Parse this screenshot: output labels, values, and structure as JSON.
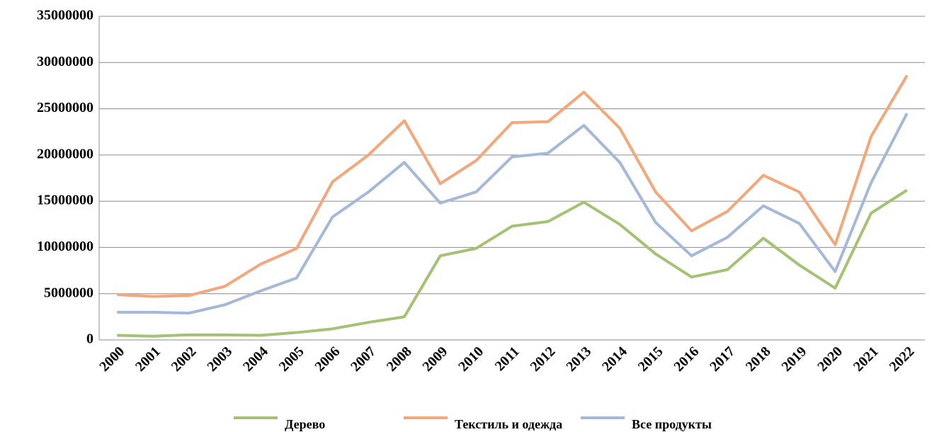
{
  "chart_data": {
    "type": "line",
    "categories": [
      "2000",
      "2001",
      "2002",
      "2003",
      "2004",
      "2005",
      "2006",
      "2007",
      "2008",
      "2009",
      "2010",
      "2011",
      "2012",
      "2013",
      "2014",
      "2015",
      "2016",
      "2017",
      "2018",
      "2019",
      "2020",
      "2021",
      "2022"
    ],
    "series": [
      {
        "name": "Дерево",
        "color": "#a3c273",
        "values": [
          500000,
          400000,
          550000,
          550000,
          500000,
          800000,
          1200000,
          1900000,
          2500000,
          9100000,
          9900000,
          12300000,
          12800000,
          14900000,
          12500000,
          9300000,
          6800000,
          7600000,
          11000000,
          8100000,
          5600000,
          13700000,
          16200000
        ]
      },
      {
        "name": "Текстиль и одежда",
        "color": "#f5a67a",
        "values": [
          4900000,
          4700000,
          4800000,
          5800000,
          8200000,
          9900000,
          17100000,
          20000000,
          23700000,
          16900000,
          19400000,
          23500000,
          23600000,
          26800000,
          22900000,
          16000000,
          11800000,
          13900000,
          17800000,
          16000000,
          10300000,
          22000000,
          28600000
        ]
      },
      {
        "name": "Все продукты",
        "color": "#a6b8da",
        "values": [
          3000000,
          3000000,
          2900000,
          3800000,
          5300000,
          6700000,
          13300000,
          16000000,
          19200000,
          14800000,
          16000000,
          19800000,
          20200000,
          23200000,
          19200000,
          12700000,
          9100000,
          11100000,
          14500000,
          12600000,
          7400000,
          17000000,
          24500000
        ]
      }
    ],
    "ylim": [
      0,
      35000000
    ],
    "yticks": [
      0,
      5000000,
      10000000,
      15000000,
      20000000,
      25000000,
      30000000,
      35000000
    ],
    "grid": true,
    "legend": "bottom"
  }
}
